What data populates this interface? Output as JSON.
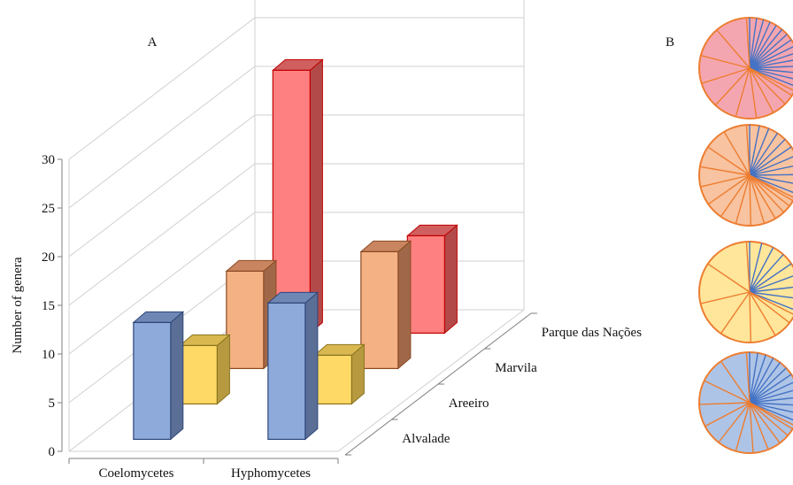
{
  "panels": {
    "a_label": "A",
    "b_label": "B"
  },
  "colors": {
    "Alvalade": {
      "front": "#8eaadb",
      "side": "#5a6e96",
      "top": "#6f87b5",
      "stroke": "#2f4778"
    },
    "Areeiro": {
      "front": "#ffd966",
      "side": "#b79a3f",
      "top": "#d8b84f",
      "stroke": "#8a7420"
    },
    "Marvila": {
      "front": "#f4b183",
      "side": "#a06848",
      "top": "#c98560",
      "stroke": "#8b4a22"
    },
    "Parque das Nações": {
      "front": "#ff8080",
      "side": "#b24a4a",
      "top": "#d06060",
      "stroke": "#c00000"
    },
    "grid": "#d0d0d0",
    "pie_blue_line": "#4472c4",
    "pie_orange_line": "#ed7d31"
  },
  "chart_data": [
    {
      "type": "bar",
      "subtype": "3d-clustered",
      "title": "",
      "xlabel": "",
      "ylabel": "Number of genera",
      "ylim": [
        0,
        30
      ],
      "yticks": [
        0,
        5,
        10,
        15,
        20,
        25,
        30
      ],
      "categories": [
        "Coelomycetes",
        "Hyphomycetes"
      ],
      "depth_categories": [
        "Alvalade",
        "Areeiro",
        "Marvila",
        "Parque das Nações"
      ],
      "series": [
        {
          "name": "Alvalade",
          "values": [
            12,
            14
          ]
        },
        {
          "name": "Areeiro",
          "values": [
            6,
            5
          ]
        },
        {
          "name": "Marvila",
          "values": [
            10,
            12
          ]
        },
        {
          "name": "Parque das Nações",
          "values": [
            27,
            10
          ]
        }
      ],
      "grid": true
    },
    {
      "type": "pie",
      "description_key": "panel B",
      "pies": [
        {
          "site": "Parque das Nações",
          "color": "#f4a6b0"
        },
        {
          "site": "Marvila",
          "color": "#f8c3a0"
        },
        {
          "site": "Areeiro",
          "color": "#ffe69a"
        },
        {
          "site": "Alvalade",
          "color": "#aec4e6"
        }
      ]
    }
  ]
}
